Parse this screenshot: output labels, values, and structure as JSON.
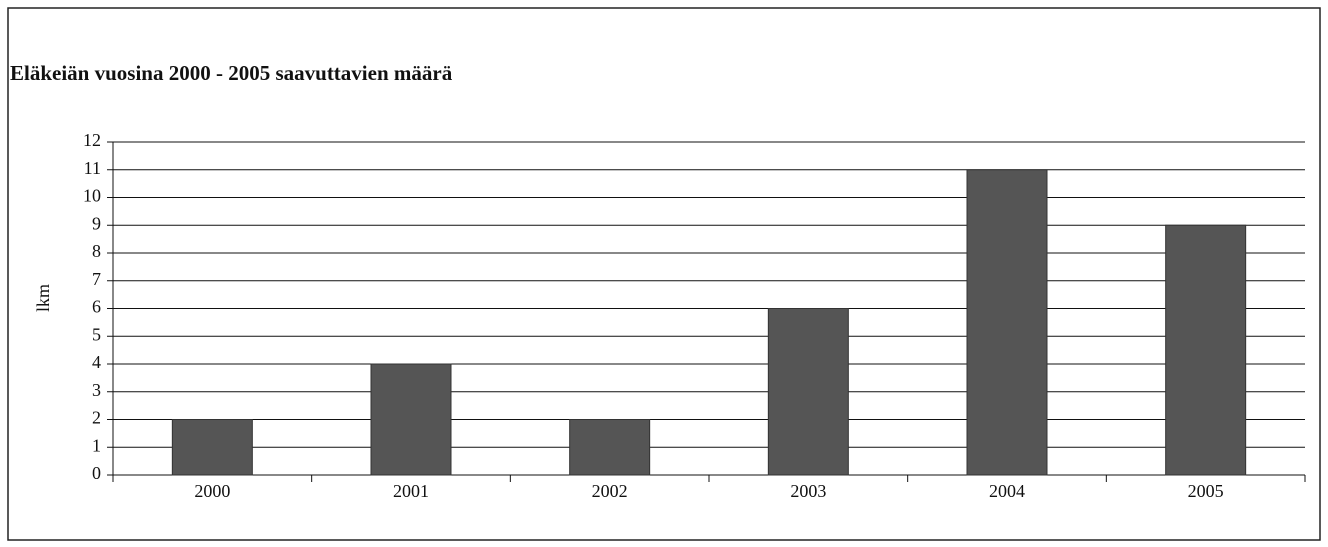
{
  "chart_data": {
    "type": "bar",
    "title": "Eläkeiän vuosina 2000 - 2005 saavuttavien määrä",
    "y_label": "lkm",
    "categories": [
      "2000",
      "2001",
      "2002",
      "2003",
      "2004",
      "2005"
    ],
    "values": [
      2,
      4,
      2,
      6,
      11,
      9
    ],
    "color": "#555555",
    "ylim": [
      0,
      12
    ],
    "yticks": [
      0,
      1,
      2,
      3,
      4,
      5,
      6,
      7,
      8,
      9,
      10,
      11,
      12
    ],
    "grid": true
  }
}
